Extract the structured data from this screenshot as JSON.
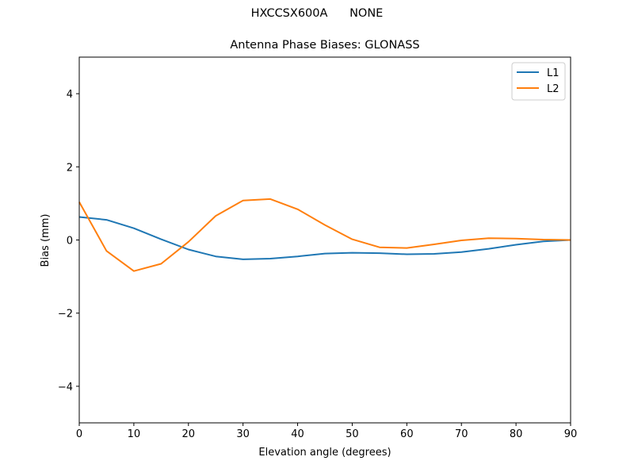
{
  "figure": {
    "suptitle": "HXCCSX600A      NONE"
  },
  "chart_data": {
    "type": "line",
    "title": "Antenna Phase Biases: GLONASS",
    "suptitle": "HXCCSX600A      NONE",
    "xlabel": "Elevation angle (degrees)",
    "ylabel": "Bias (mm)",
    "xlim": [
      0,
      90
    ],
    "ylim": [
      -5,
      5
    ],
    "xticks": [
      0,
      10,
      20,
      30,
      40,
      50,
      60,
      70,
      80,
      90
    ],
    "yticks": [
      -4,
      -2,
      0,
      2,
      4
    ],
    "ytick_labels": [
      "−4",
      "−2",
      "0",
      "2",
      "4"
    ],
    "grid": false,
    "legend_position": "upper right",
    "x": [
      0,
      5,
      10,
      15,
      20,
      25,
      30,
      35,
      40,
      45,
      50,
      55,
      60,
      65,
      70,
      75,
      80,
      85,
      90
    ],
    "series": [
      {
        "name": "L1",
        "color": "#1f77b4",
        "values": [
          0.63,
          0.55,
          0.32,
          0.02,
          -0.26,
          -0.45,
          -0.53,
          -0.51,
          -0.45,
          -0.37,
          -0.35,
          -0.36,
          -0.39,
          -0.38,
          -0.33,
          -0.24,
          -0.13,
          -0.04,
          0.0
        ]
      },
      {
        "name": "L2",
        "color": "#ff7f0e",
        "values": [
          1.04,
          -0.3,
          -0.85,
          -0.65,
          -0.05,
          0.66,
          1.08,
          1.12,
          0.84,
          0.41,
          0.02,
          -0.2,
          -0.22,
          -0.12,
          -0.01,
          0.05,
          0.04,
          0.01,
          0.0
        ]
      }
    ]
  }
}
